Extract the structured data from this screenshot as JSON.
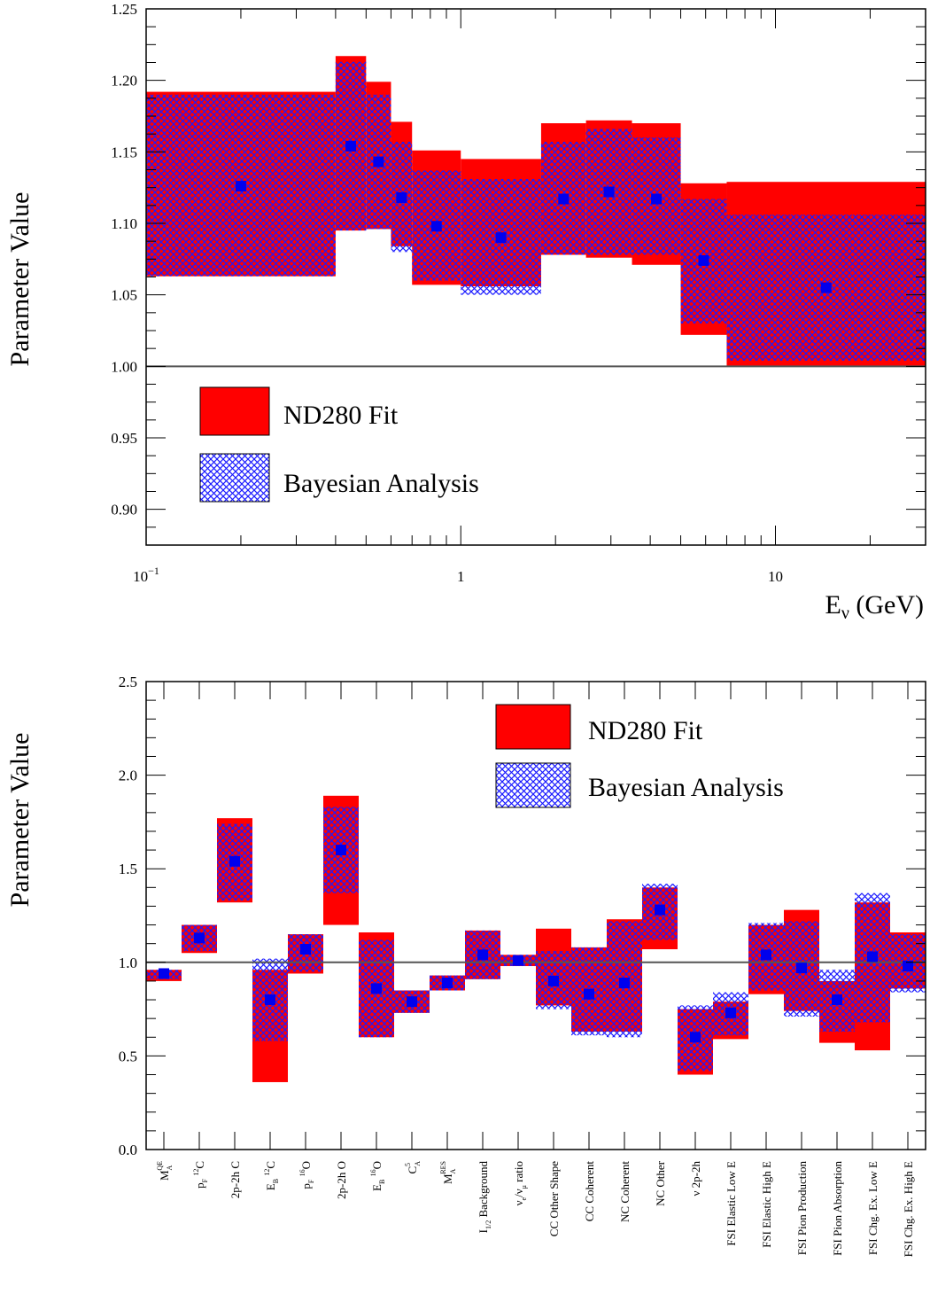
{
  "colors": {
    "nd280": "#ff0000",
    "bayes": "#1a1aff",
    "marker": "#0000ee",
    "unity_line": "#555555"
  },
  "chart_data": [
    {
      "type": "bar",
      "ylabel": "Parameter Value",
      "xlabel_main": "E",
      "xlabel_sub": "ν",
      "xlabel_tail": " (GeV)",
      "xscale": "log",
      "xlim": [
        0.1,
        30
      ],
      "ylim": [
        0.875,
        1.25
      ],
      "x_tick_labels": [
        {
          "v": 0.1,
          "base": "10",
          "exp": "−1"
        },
        {
          "v": 1,
          "base": "1",
          "exp": ""
        },
        {
          "v": 10,
          "base": "10",
          "exp": ""
        }
      ],
      "y_tick_labels": [
        "0.90",
        "0.95",
        "1.00",
        "1.05",
        "1.10",
        "1.15",
        "1.20",
        "1.25"
      ],
      "legend": {
        "nd280": "ND280 Fit",
        "bayes": "Bayesian Analysis",
        "position": "bottom-left"
      },
      "reference_line": 1.0,
      "series": [
        {
          "name": "ND280 Fit",
          "bins": [
            {
              "lo": 0.1,
              "hi": 0.4,
              "low": 1.063,
              "high": 1.192
            },
            {
              "lo": 0.4,
              "hi": 0.5,
              "low": 1.095,
              "high": 1.217
            },
            {
              "lo": 0.5,
              "hi": 0.6,
              "low": 1.096,
              "high": 1.199
            },
            {
              "lo": 0.6,
              "hi": 0.7,
              "low": 1.084,
              "high": 1.171
            },
            {
              "lo": 0.7,
              "hi": 1.0,
              "low": 1.057,
              "high": 1.151
            },
            {
              "lo": 1.0,
              "hi": 1.8,
              "low": 1.056,
              "high": 1.145
            },
            {
              "lo": 1.8,
              "hi": 2.5,
              "low": 1.078,
              "high": 1.17
            },
            {
              "lo": 2.5,
              "hi": 3.5,
              "low": 1.076,
              "high": 1.172
            },
            {
              "lo": 3.5,
              "hi": 5.0,
              "low": 1.071,
              "high": 1.17
            },
            {
              "lo": 5.0,
              "hi": 7.0,
              "low": 1.022,
              "high": 1.128
            },
            {
              "lo": 7.0,
              "hi": 30.0,
              "low": 1.0,
              "high": 1.129
            }
          ]
        },
        {
          "name": "Bayesian Analysis",
          "bins": [
            {
              "lo": 0.1,
              "hi": 0.4,
              "low": 1.063,
              "high": 1.19,
              "value": 1.126
            },
            {
              "lo": 0.4,
              "hi": 0.5,
              "low": 1.095,
              "high": 1.213,
              "value": 1.154
            },
            {
              "lo": 0.5,
              "hi": 0.6,
              "low": 1.096,
              "high": 1.19,
              "value": 1.143
            },
            {
              "lo": 0.6,
              "hi": 0.7,
              "low": 1.08,
              "high": 1.157,
              "value": 1.118
            },
            {
              "lo": 0.7,
              "hi": 1.0,
              "low": 1.06,
              "high": 1.137,
              "value": 1.098
            },
            {
              "lo": 1.0,
              "hi": 1.8,
              "low": 1.05,
              "high": 1.131,
              "value": 1.09
            },
            {
              "lo": 1.8,
              "hi": 2.5,
              "low": 1.078,
              "high": 1.157,
              "value": 1.117
            },
            {
              "lo": 2.5,
              "hi": 3.5,
              "low": 1.078,
              "high": 1.166,
              "value": 1.122
            },
            {
              "lo": 3.5,
              "hi": 5.0,
              "low": 1.078,
              "high": 1.16,
              "value": 1.117
            },
            {
              "lo": 5.0,
              "hi": 7.0,
              "low": 1.03,
              "high": 1.117,
              "value": 1.074
            },
            {
              "lo": 7.0,
              "hi": 30.0,
              "low": 1.004,
              "high": 1.106,
              "value": 1.055
            }
          ]
        }
      ]
    },
    {
      "type": "bar",
      "ylabel": "Parameter Value",
      "ylim": [
        0.0,
        2.5
      ],
      "y_tick_labels": [
        "0.0",
        "0.5",
        "1.0",
        "1.5",
        "2.0",
        "2.5"
      ],
      "legend": {
        "nd280": "ND280 Fit",
        "bayes": "Bayesian Analysis",
        "position": "top-right"
      },
      "reference_line": 1.0,
      "categories": [
        {
          "main": "M",
          "sub": "A",
          "sup": "QE"
        },
        {
          "main": "p",
          "sub": "F",
          "tail": " ",
          "sup2": "12",
          "tail2": "C"
        },
        {
          "main": "2p-2h C"
        },
        {
          "main": "E",
          "sub": "B",
          "tail": " ",
          "sup2": "12",
          "tail2": "C"
        },
        {
          "main": "p",
          "sub": "F",
          "tail": " ",
          "sup2": "16",
          "tail2": "O"
        },
        {
          "main": "2p-2h O"
        },
        {
          "main": "E",
          "sub": "B",
          "tail": " ",
          "sup2": "16",
          "tail2": "O"
        },
        {
          "main": "C",
          "sub": "A",
          "sup": "5"
        },
        {
          "main": "M",
          "sub": "A",
          "sup": "RES"
        },
        {
          "main": "I",
          "sub": "1/2",
          "tail": " Background"
        },
        {
          "main": "ν",
          "sub": "e",
          "tail": "/ν",
          "sub2": "μ",
          "tail2": " ratio"
        },
        {
          "main": "CC Other Shape"
        },
        {
          "main": "CC Coherent"
        },
        {
          "main": "NC Coherent"
        },
        {
          "main": "NC Other"
        },
        {
          "main": "ν 2p-2h"
        },
        {
          "main": "FSI Elastic Low E"
        },
        {
          "main": "FSI Elastic High E"
        },
        {
          "main": "FSI Pion Production"
        },
        {
          "main": "FSI Pion Absorption"
        },
        {
          "main": "FSI Chg. Ex. Low E"
        },
        {
          "main": "FSI Chg. Ex. High E"
        }
      ],
      "series": [
        {
          "name": "ND280 Fit",
          "low": [
            0.9,
            1.05,
            1.32,
            0.36,
            0.94,
            1.2,
            0.6,
            0.73,
            0.85,
            0.91,
            0.98,
            0.77,
            0.63,
            0.63,
            1.07,
            0.4,
            0.59,
            0.83,
            0.74,
            0.57,
            0.53,
            0.86
          ],
          "high": [
            0.96,
            1.2,
            1.77,
            0.96,
            1.15,
            1.89,
            1.16,
            0.85,
            0.93,
            1.17,
            1.04,
            1.18,
            1.08,
            1.23,
            1.4,
            0.75,
            0.79,
            1.2,
            1.28,
            0.9,
            1.32,
            1.16
          ]
        },
        {
          "name": "Bayesian Analysis",
          "low": [
            0.91,
            1.06,
            1.33,
            0.58,
            0.95,
            1.37,
            0.6,
            0.73,
            0.85,
            0.91,
            0.98,
            0.75,
            0.61,
            0.6,
            1.12,
            0.42,
            0.61,
            0.85,
            0.71,
            0.63,
            0.68,
            0.84
          ],
          "high": [
            0.96,
            1.2,
            1.74,
            1.02,
            1.15,
            1.83,
            1.12,
            0.85,
            0.93,
            1.17,
            1.04,
            1.06,
            1.08,
            1.22,
            1.42,
            0.77,
            0.84,
            1.21,
            1.22,
            0.96,
            1.37,
            1.15
          ],
          "values": [
            0.94,
            1.13,
            1.54,
            0.8,
            1.07,
            1.6,
            0.86,
            0.79,
            0.89,
            1.04,
            1.01,
            0.9,
            0.83,
            0.89,
            1.28,
            0.6,
            0.73,
            1.04,
            0.97,
            0.8,
            1.03,
            0.98
          ]
        }
      ]
    }
  ]
}
